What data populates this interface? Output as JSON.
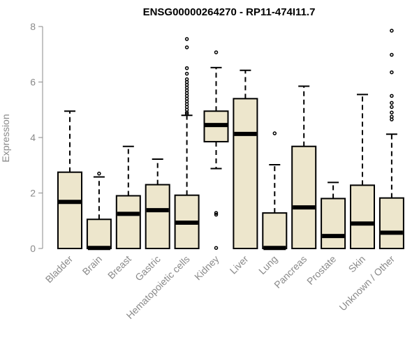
{
  "chart_data": {
    "type": "boxplot",
    "title": "ENSG00000264270 - RP11-474I11.7",
    "xlabel": "",
    "ylabel": "Expression",
    "ylim": [
      0,
      8
    ],
    "yticks": [
      0,
      2,
      4,
      6,
      8
    ],
    "grid": false,
    "colors": {
      "box_fill": "#ede6cc",
      "stroke": "#000000",
      "axis": "#8a8a8a"
    },
    "categories": [
      "Bladder",
      "Brain",
      "Breast",
      "Gastric",
      "Hematopoietic cells",
      "Kidney",
      "Liver",
      "Lung",
      "Pancreas",
      "Prostate",
      "Skin",
      "Unknown / Other"
    ],
    "boxes": [
      {
        "q1": 0,
        "median": 1.68,
        "q3": 2.75,
        "whisker_low": 0,
        "whisker_high": 4.95,
        "outliers": []
      },
      {
        "q1": 0,
        "median": 0.02,
        "q3": 1.05,
        "whisker_low": 0,
        "whisker_high": 2.58,
        "outliers": [
          2.7
        ]
      },
      {
        "q1": 0,
        "median": 1.25,
        "q3": 1.9,
        "whisker_low": 0,
        "whisker_high": 3.68,
        "outliers": []
      },
      {
        "q1": 0,
        "median": 1.38,
        "q3": 2.3,
        "whisker_low": 0,
        "whisker_high": 3.22,
        "outliers": []
      },
      {
        "q1": 0,
        "median": 0.93,
        "q3": 1.92,
        "whisker_low": 0,
        "whisker_high": 4.8,
        "outliers": [
          4.85,
          4.9,
          5.0,
          5.1,
          5.2,
          5.3,
          5.4,
          5.5,
          5.6,
          5.7,
          5.8,
          5.9,
          6.0,
          6.1,
          6.3,
          6.5,
          7.25,
          7.55
        ]
      },
      {
        "q1": 3.85,
        "median": 4.45,
        "q3": 4.95,
        "whisker_low": 2.88,
        "whisker_high": 6.52,
        "outliers": [
          7.07,
          1.28,
          1.22,
          0.02
        ]
      },
      {
        "q1": 0,
        "median": 4.13,
        "q3": 5.4,
        "whisker_low": 0,
        "whisker_high": 6.42,
        "outliers": []
      },
      {
        "q1": 0,
        "median": 0.02,
        "q3": 1.28,
        "whisker_low": 0,
        "whisker_high": 3.02,
        "outliers": [
          4.15
        ]
      },
      {
        "q1": 0,
        "median": 1.48,
        "q3": 3.68,
        "whisker_low": 0,
        "whisker_high": 5.85,
        "outliers": []
      },
      {
        "q1": 0,
        "median": 0.45,
        "q3": 1.8,
        "whisker_low": 0,
        "whisker_high": 2.38,
        "outliers": []
      },
      {
        "q1": 0,
        "median": 0.9,
        "q3": 2.28,
        "whisker_low": 0,
        "whisker_high": 5.55,
        "outliers": []
      },
      {
        "q1": 0,
        "median": 0.57,
        "q3": 1.82,
        "whisker_low": 0,
        "whisker_high": 4.12,
        "outliers": [
          4.65,
          4.75,
          4.9,
          5.1,
          5.25,
          5.5,
          6.35,
          6.98,
          7.85
        ]
      }
    ]
  }
}
